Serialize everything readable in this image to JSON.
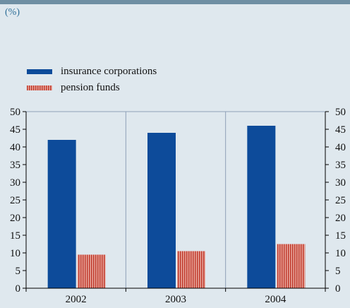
{
  "unit_label": "(%)",
  "colors": {
    "background": "#dfe8ee",
    "insurance": "#0d4b9a",
    "pension_fill": "#e9aaa0",
    "pension_stripe": "#c0392b",
    "grid": "#8fa0b8"
  },
  "legend": {
    "items": [
      {
        "label": "insurance corporations",
        "swatch": "solid-blue"
      },
      {
        "label": "pension funds",
        "swatch": "striped-red"
      }
    ]
  },
  "chart_data": {
    "type": "bar",
    "categories": [
      "2002",
      "2003",
      "2004"
    ],
    "series": [
      {
        "name": "insurance corporations",
        "values": [
          42,
          44,
          46
        ]
      },
      {
        "name": "pension funds",
        "values": [
          9.5,
          10.5,
          12.5
        ]
      }
    ],
    "title": "",
    "xlabel": "",
    "ylabel": "(%)",
    "ylim": [
      0,
      50
    ],
    "yticks": [
      0,
      5,
      10,
      15,
      20,
      25,
      30,
      35,
      40,
      45,
      50
    ],
    "grid": "vertical separators only",
    "y_axis_sides": [
      "left",
      "right"
    ],
    "legend_position": "top-left"
  }
}
